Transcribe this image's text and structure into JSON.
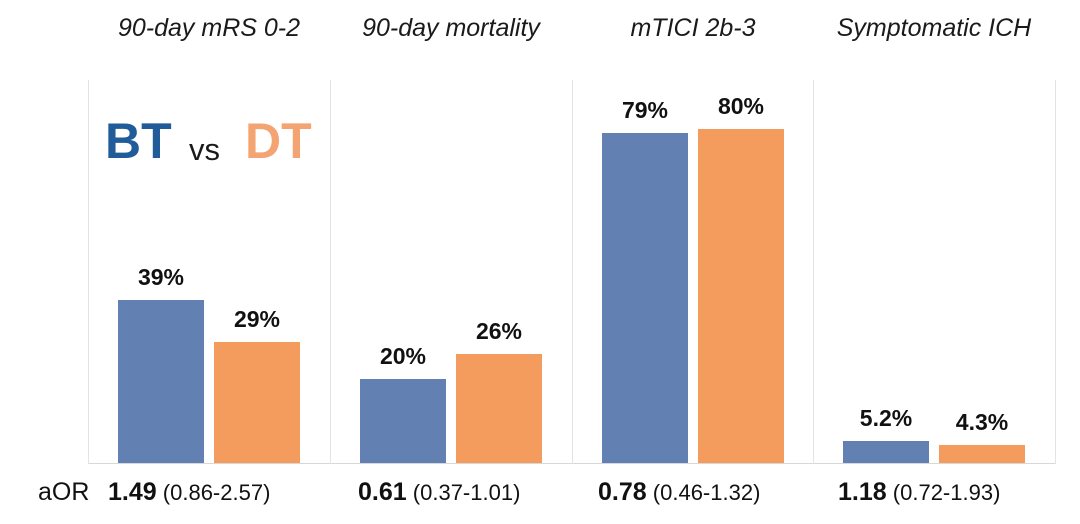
{
  "chart_data": {
    "type": "bar",
    "categories": [
      "90-day mRS 0-2",
      "90-day mortality",
      "mTICI 2b-3",
      "Symptomatic ICH"
    ],
    "series": [
      {
        "name": "BT",
        "color": "#6380B3",
        "values": [
          39,
          20,
          79,
          5.2
        ],
        "labels": [
          "39%",
          "20%",
          "79%",
          "5.2%"
        ]
      },
      {
        "name": "DT",
        "color": "#F39C5E",
        "values": [
          29,
          26,
          80,
          4.3
        ],
        "labels": [
          "29%",
          "26%",
          "80%",
          "4.3%"
        ]
      }
    ],
    "ylim": [
      0,
      100
    ],
    "legend": {
      "bt": "BT",
      "vs": "vs",
      "dt": "DT",
      "bt_color": "#1F5C99",
      "dt_color": "#F4A472",
      "placement": "top-left"
    },
    "aor": {
      "label": "aOR",
      "entries": [
        {
          "value": "1.49",
          "ci": "(0.86-2.57)"
        },
        {
          "value": "0.61",
          "ci": "(0.37-1.01)"
        },
        {
          "value": "0.78",
          "ci": "(0.46-1.32)"
        },
        {
          "value": "1.18",
          "ci": "(0.72-1.93)"
        }
      ]
    }
  }
}
